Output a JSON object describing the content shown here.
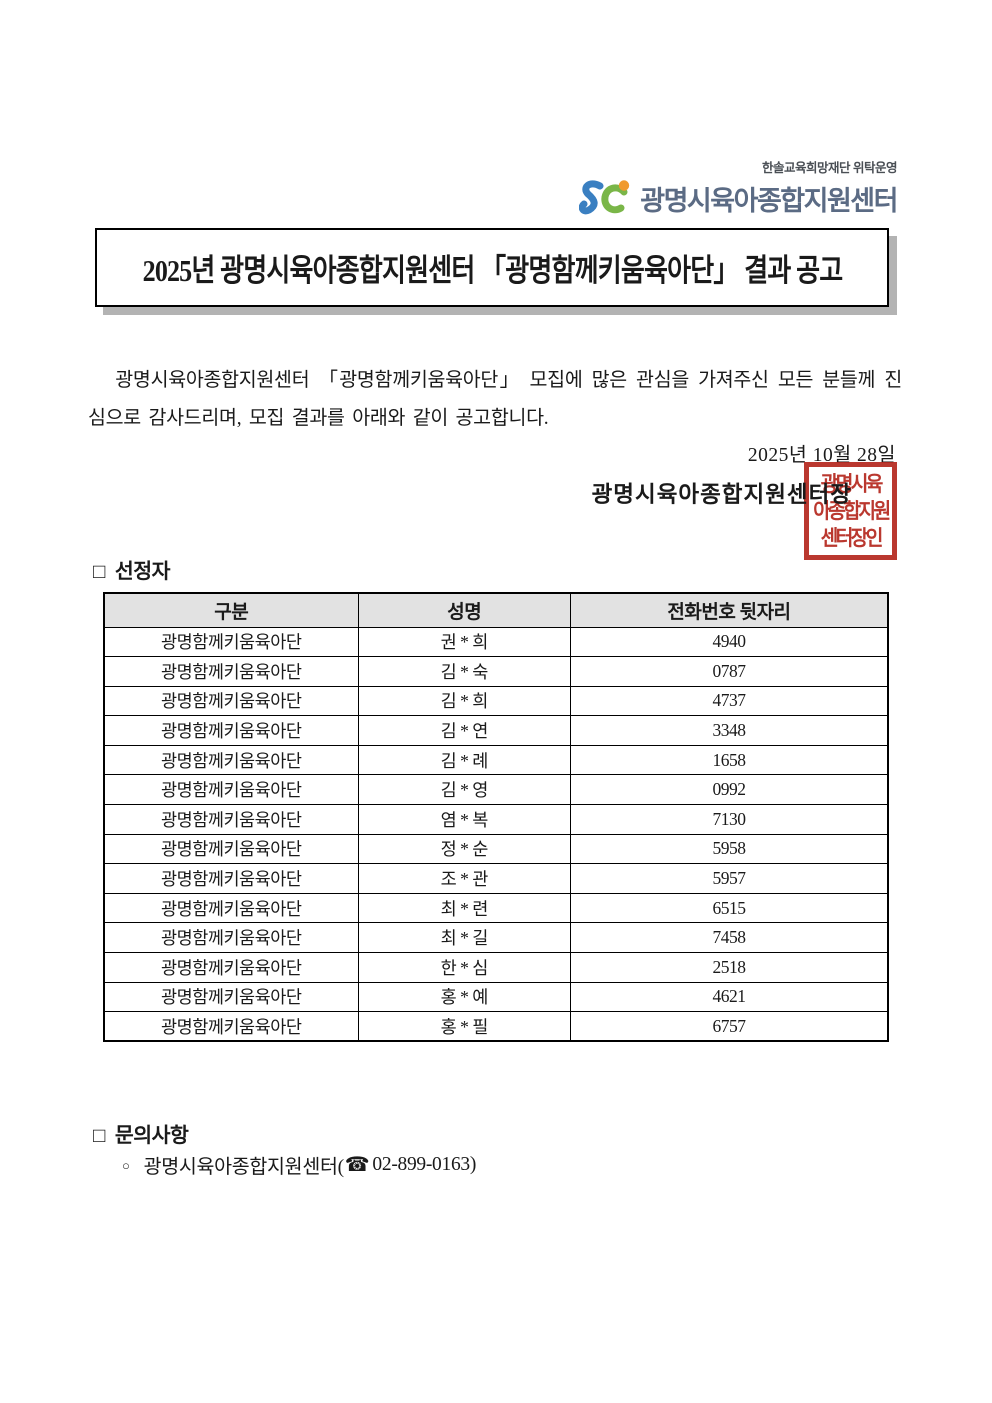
{
  "header": {
    "operator_note": "한솔교육희망재단 위탁운영",
    "org_name": "광명시육아종합지원센터",
    "logo_colors": {
      "s_blue": "#3a7fc1",
      "c_green": "#7ab648",
      "dot_orange": "#f09a2e"
    }
  },
  "title": "2025년 광명시육아종합지원센터 「광명함께키움육아단」 결과 공고",
  "body": {
    "paragraph": "광명시육아종합지원센터 「광명함께키움육아단」 모집에 많은 관심을 가져주신 모든 분들께 진심으로 감사드리며, 모집 결과를 아래와 같이 공고합니다.",
    "date": "2025년 10월 28일",
    "signer": "광명시육아종합지원센터장",
    "seal": {
      "lines": [
        "광명시육",
        "아종합지원",
        "센터장인"
      ],
      "color": "#b5281e"
    }
  },
  "selected_section": {
    "marker": "□",
    "heading": "선정자",
    "table": {
      "columns": [
        "구분",
        "성명",
        "전화번호 뒷자리"
      ],
      "rows": [
        [
          "광명함께키움육아단",
          "권 * 희",
          "4940"
        ],
        [
          "광명함께키움육아단",
          "김 * 숙",
          "0787"
        ],
        [
          "광명함께키움육아단",
          "김 * 희",
          "4737"
        ],
        [
          "광명함께키움육아단",
          "김 * 연",
          "3348"
        ],
        [
          "광명함께키움육아단",
          "김 * 례",
          "1658"
        ],
        [
          "광명함께키움육아단",
          "김 * 영",
          "0992"
        ],
        [
          "광명함께키움육아단",
          "염 * 복",
          "7130"
        ],
        [
          "광명함께키움육아단",
          "정 * 순",
          "5958"
        ],
        [
          "광명함께키움육아단",
          "조 * 관",
          "5957"
        ],
        [
          "광명함께키움육아단",
          "최 * 련",
          "6515"
        ],
        [
          "광명함께키움육아단",
          "최 * 길",
          "7458"
        ],
        [
          "광명함께키움육아단",
          "한 * 심",
          "2518"
        ],
        [
          "광명함께키움육아단",
          "홍 * 예",
          "4621"
        ],
        [
          "광명함께키움육아단",
          "홍 * 필",
          "6757"
        ]
      ]
    }
  },
  "inquiry_section": {
    "marker": "□",
    "heading": "문의사항",
    "bullet": "○",
    "item_prefix": "광명시육아종합지원센터(",
    "phone_icon": "☎",
    "item_suffix": "02-899-0163)"
  }
}
